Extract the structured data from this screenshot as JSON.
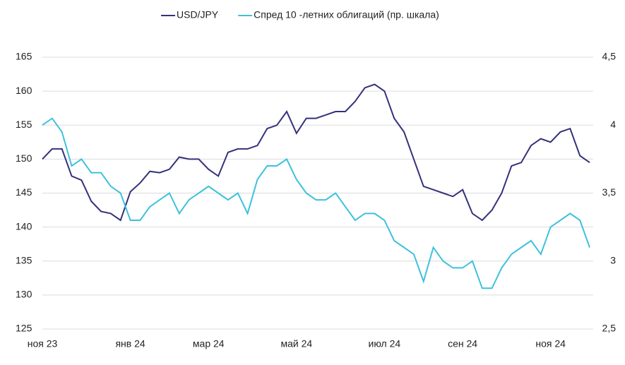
{
  "chart_data": {
    "type": "line",
    "categories": [
      "ноя 23",
      null,
      null,
      null,
      null,
      null,
      null,
      null,
      null,
      "янв 24",
      null,
      null,
      null,
      null,
      null,
      null,
      null,
      "мар 24",
      null,
      null,
      null,
      null,
      null,
      null,
      null,
      null,
      "май 24",
      null,
      null,
      null,
      null,
      null,
      null,
      null,
      null,
      "июл 24",
      null,
      null,
      null,
      null,
      null,
      null,
      null,
      "сен 24",
      null,
      null,
      null,
      null,
      null,
      null,
      null,
      null,
      "ноя 24",
      null,
      null,
      null,
      null
    ],
    "series": [
      {
        "name": "USD/JPY",
        "color": "#35317a",
        "values": [
          150,
          151.5,
          151.5,
          147.5,
          146.9,
          143.8,
          142.3,
          142,
          141,
          145.2,
          146.5,
          148.2,
          148,
          148.5,
          150.3,
          150,
          150,
          148.5,
          147.5,
          151,
          151.5,
          151.5,
          152,
          154.5,
          155,
          157,
          153.8,
          156,
          156,
          156.5,
          157,
          157,
          158.5,
          160.5,
          161,
          160,
          156,
          154,
          150,
          146,
          145.5,
          145,
          144.5,
          145.5,
          142,
          141,
          142.5,
          145,
          149,
          149.5,
          152,
          153,
          152.5,
          154,
          154.5,
          150.5,
          149.5
        ]
      },
      {
        "name": "Спред 10 -летних облигаций (пр. шкала)",
        "color": "#3ec1dc",
        "axis": "y2",
        "values": [
          4.0,
          4.05,
          3.95,
          3.7,
          3.75,
          3.65,
          3.65,
          3.55,
          3.5,
          3.3,
          3.3,
          3.4,
          3.45,
          3.5,
          3.35,
          3.45,
          3.5,
          3.55,
          3.5,
          3.45,
          3.5,
          3.35,
          3.6,
          3.7,
          3.7,
          3.75,
          3.6,
          3.5,
          3.45,
          3.45,
          3.5,
          3.4,
          3.3,
          3.35,
          3.35,
          3.3,
          3.15,
          3.1,
          3.05,
          2.85,
          3.1,
          3.0,
          2.95,
          2.95,
          3.0,
          2.8,
          2.8,
          2.95,
          3.05,
          3.1,
          3.15,
          3.05,
          3.25,
          3.3,
          3.35,
          3.3,
          3.1
        ]
      }
    ],
    "ylim": [
      125,
      165
    ],
    "yticks": [
      125,
      130,
      135,
      140,
      145,
      150,
      155,
      160,
      165
    ],
    "y2lim": [
      2.5,
      4.5
    ],
    "y2ticks": [
      {
        "value": 2.5,
        "label": "2,5"
      },
      3,
      {
        "value": 3.5,
        "label": "3,5"
      },
      4,
      {
        "value": 4.5,
        "label": "4,5"
      }
    ],
    "grid": true
  }
}
